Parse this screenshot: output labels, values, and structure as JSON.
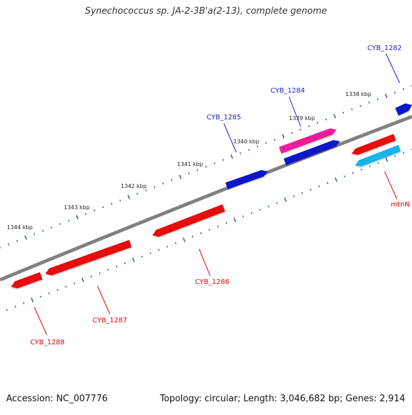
{
  "title": "Synechococcus sp. JA-2-3B'a(2-13), complete genome",
  "footer": {
    "accession": "Accession: NC_007776",
    "summary": "Topology: circular; Length: 3,046,682 bp; Genes: 2,914"
  },
  "colors": {
    "backbone": "#808080",
    "ticks": "#2e7d32",
    "forward_gene": "#0a14c8",
    "reverse_gene": "#e60a0a",
    "rna_gene_pink": "#ee1c9a",
    "rna_gene_cyan": "#18b4ec",
    "label_forward": "#1a1ad0",
    "label_reverse": "#e00000"
  },
  "scale_labels": [
    "1344 kbp",
    "1343 kbp",
    "1342 kbp",
    "1341 kbp",
    "1340 kbp",
    "1339 kbp",
    "1338 kbp"
  ],
  "gene_labels": [
    "CYB_1282",
    "CYB_1284",
    "CYB_1285",
    "mtnN",
    "CYB_1286",
    "CYB_1287",
    "CYB_1288"
  ]
}
